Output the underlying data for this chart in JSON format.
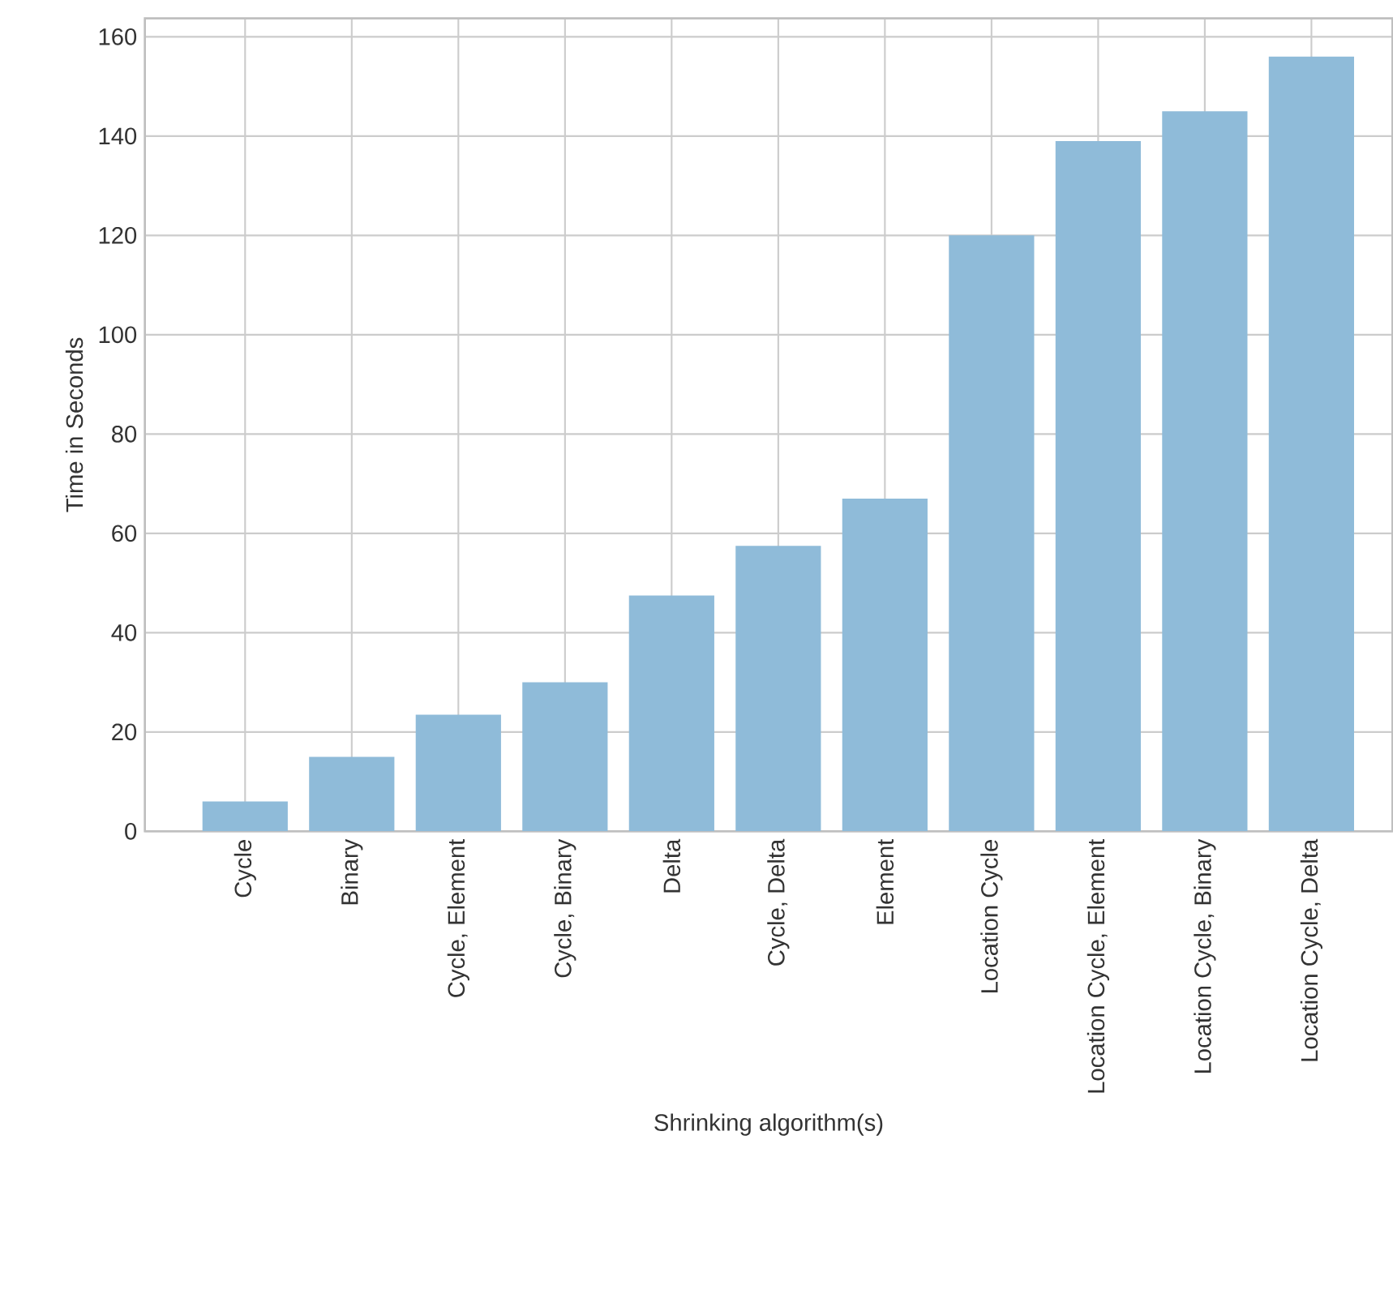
{
  "chart_data": {
    "type": "bar",
    "xlabel": "Shrinking algorithm(s)",
    "ylabel": "Time in Seconds",
    "categories": [
      "Cycle",
      "Binary",
      "Cycle, Element",
      "Cycle, Binary",
      "Delta",
      "Cycle, Delta",
      "Element",
      "Location Cycle",
      "Location Cycle, Element",
      "Location Cycle, Binary",
      "Location Cycle, Delta"
    ],
    "values": [
      6,
      15,
      23.5,
      30,
      47.5,
      57.5,
      67,
      120,
      139,
      145,
      156
    ],
    "color": "#8fbbd9",
    "ylim": [
      0,
      163.7
    ],
    "yticks": [
      0,
      20,
      40,
      60,
      80,
      100,
      120,
      140,
      160
    ],
    "grid": true
  }
}
